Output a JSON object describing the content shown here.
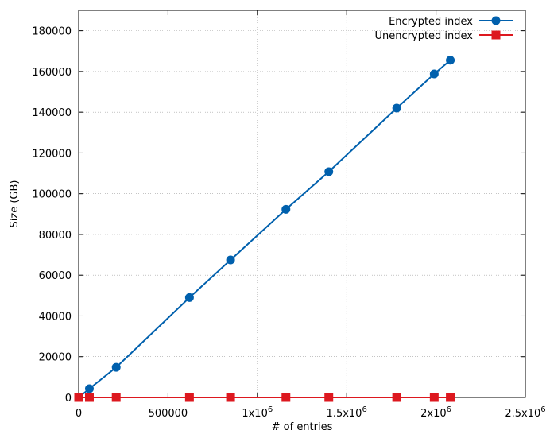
{
  "chart_data": {
    "type": "line",
    "title": "",
    "xlabel": "# of entries",
    "ylabel": "Size (GB)",
    "xlim": [
      0,
      2500000
    ],
    "ylim": [
      0,
      190000
    ],
    "grid": true,
    "legend_position": "top-right",
    "x_ticks": [
      {
        "value": 0,
        "label": "0",
        "sup": ""
      },
      {
        "value": 500000,
        "label": "500000",
        "sup": ""
      },
      {
        "value": 1000000,
        "label": "1x10",
        "sup": "6"
      },
      {
        "value": 1500000,
        "label": "1.5x10",
        "sup": "6"
      },
      {
        "value": 2000000,
        "label": "2x10",
        "sup": "6"
      },
      {
        "value": 2500000,
        "label": "2.5x10",
        "sup": "6"
      }
    ],
    "y_ticks": [
      {
        "value": 0,
        "label": "0"
      },
      {
        "value": 20000,
        "label": "20000"
      },
      {
        "value": 40000,
        "label": "40000"
      },
      {
        "value": 60000,
        "label": "60000"
      },
      {
        "value": 80000,
        "label": "80000"
      },
      {
        "value": 100000,
        "label": "100000"
      },
      {
        "value": 120000,
        "label": "120000"
      },
      {
        "value": 140000,
        "label": "140000"
      },
      {
        "value": 160000,
        "label": "160000"
      },
      {
        "value": 180000,
        "label": "180000"
      }
    ],
    "series": [
      {
        "name": "Encrypted index",
        "color": "#0060ad",
        "marker": "circle",
        "x": [
          0,
          60000,
          210000,
          620000,
          850000,
          1160000,
          1400000,
          1780000,
          1990000,
          2080000
        ],
        "y": [
          0,
          4300,
          14800,
          49000,
          67500,
          92300,
          110800,
          142000,
          158800,
          165500
        ]
      },
      {
        "name": "Unencrypted index",
        "color": "#dd181f",
        "marker": "square",
        "x": [
          0,
          60000,
          210000,
          620000,
          850000,
          1160000,
          1400000,
          1780000,
          1990000,
          2080000
        ],
        "y": [
          0,
          0,
          0,
          0,
          0,
          0,
          0,
          0,
          0,
          0
        ]
      }
    ]
  }
}
